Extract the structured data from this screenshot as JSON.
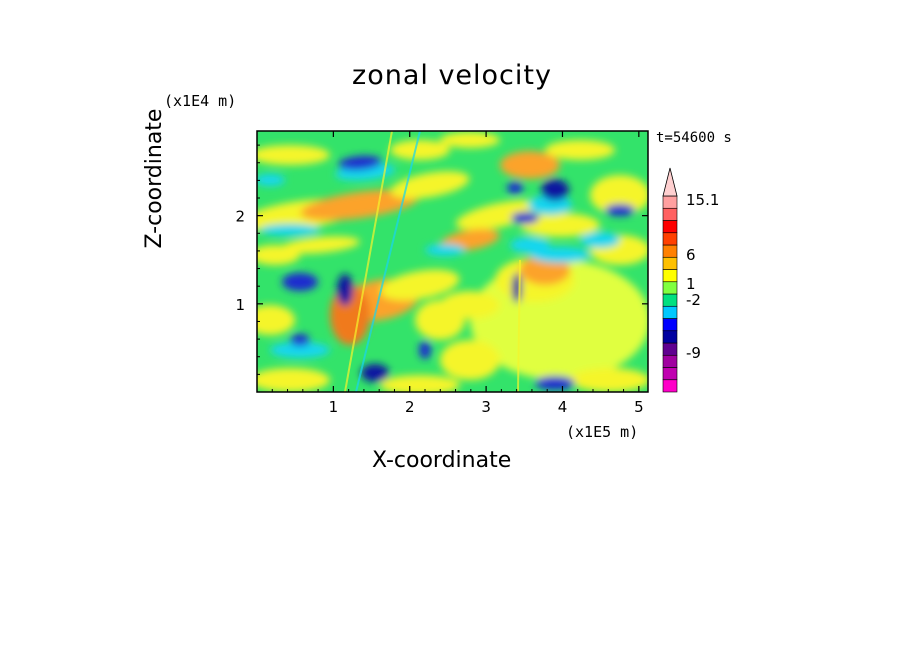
{
  "chart_data": {
    "type": "heatmap",
    "title": "zonal velocity",
    "xlabel": "X-coordinate",
    "ylabel": "Z-coordinate",
    "x_unit": "(x1E5 m)",
    "z_unit": "(x1E4 m)",
    "time_label": "t=54600 s",
    "x_ticks": [
      "1",
      "2",
      "3",
      "4",
      "5"
    ],
    "x_tick_values": [
      1,
      2,
      3,
      4,
      5
    ],
    "xlim": [
      0,
      5.12
    ],
    "y_ticks": [
      "1",
      "2"
    ],
    "y_tick_values": [
      1,
      2
    ],
    "ylim": [
      0,
      2.96
    ],
    "colorbar": {
      "colors": [
        "#ff00c8",
        "#c000b0",
        "#a000a0",
        "#600090",
        "#0000a0",
        "#0000ff",
        "#00c8ff",
        "#00e080",
        "#80ff40",
        "#ffff00",
        "#ffc000",
        "#ff8000",
        "#ff4000",
        "#ff0000",
        "#ff6060",
        "#ffa0a0",
        "#ffd0d0"
      ],
      "labels": [
        "-9",
        "-2",
        "1",
        "6",
        "15.1"
      ],
      "label_levels": [
        -9,
        -2,
        1,
        6,
        15.1
      ]
    },
    "field_colors": {
      "green": "#33e36a",
      "yellow": "#f5f52c",
      "lightyellow": "#e0ff40",
      "orange": "#fca32c",
      "darkorange": "#f07a1e",
      "cyan": "#17d6ef",
      "blue": "#1d2ccf",
      "navy": "#0d14a0"
    }
  }
}
